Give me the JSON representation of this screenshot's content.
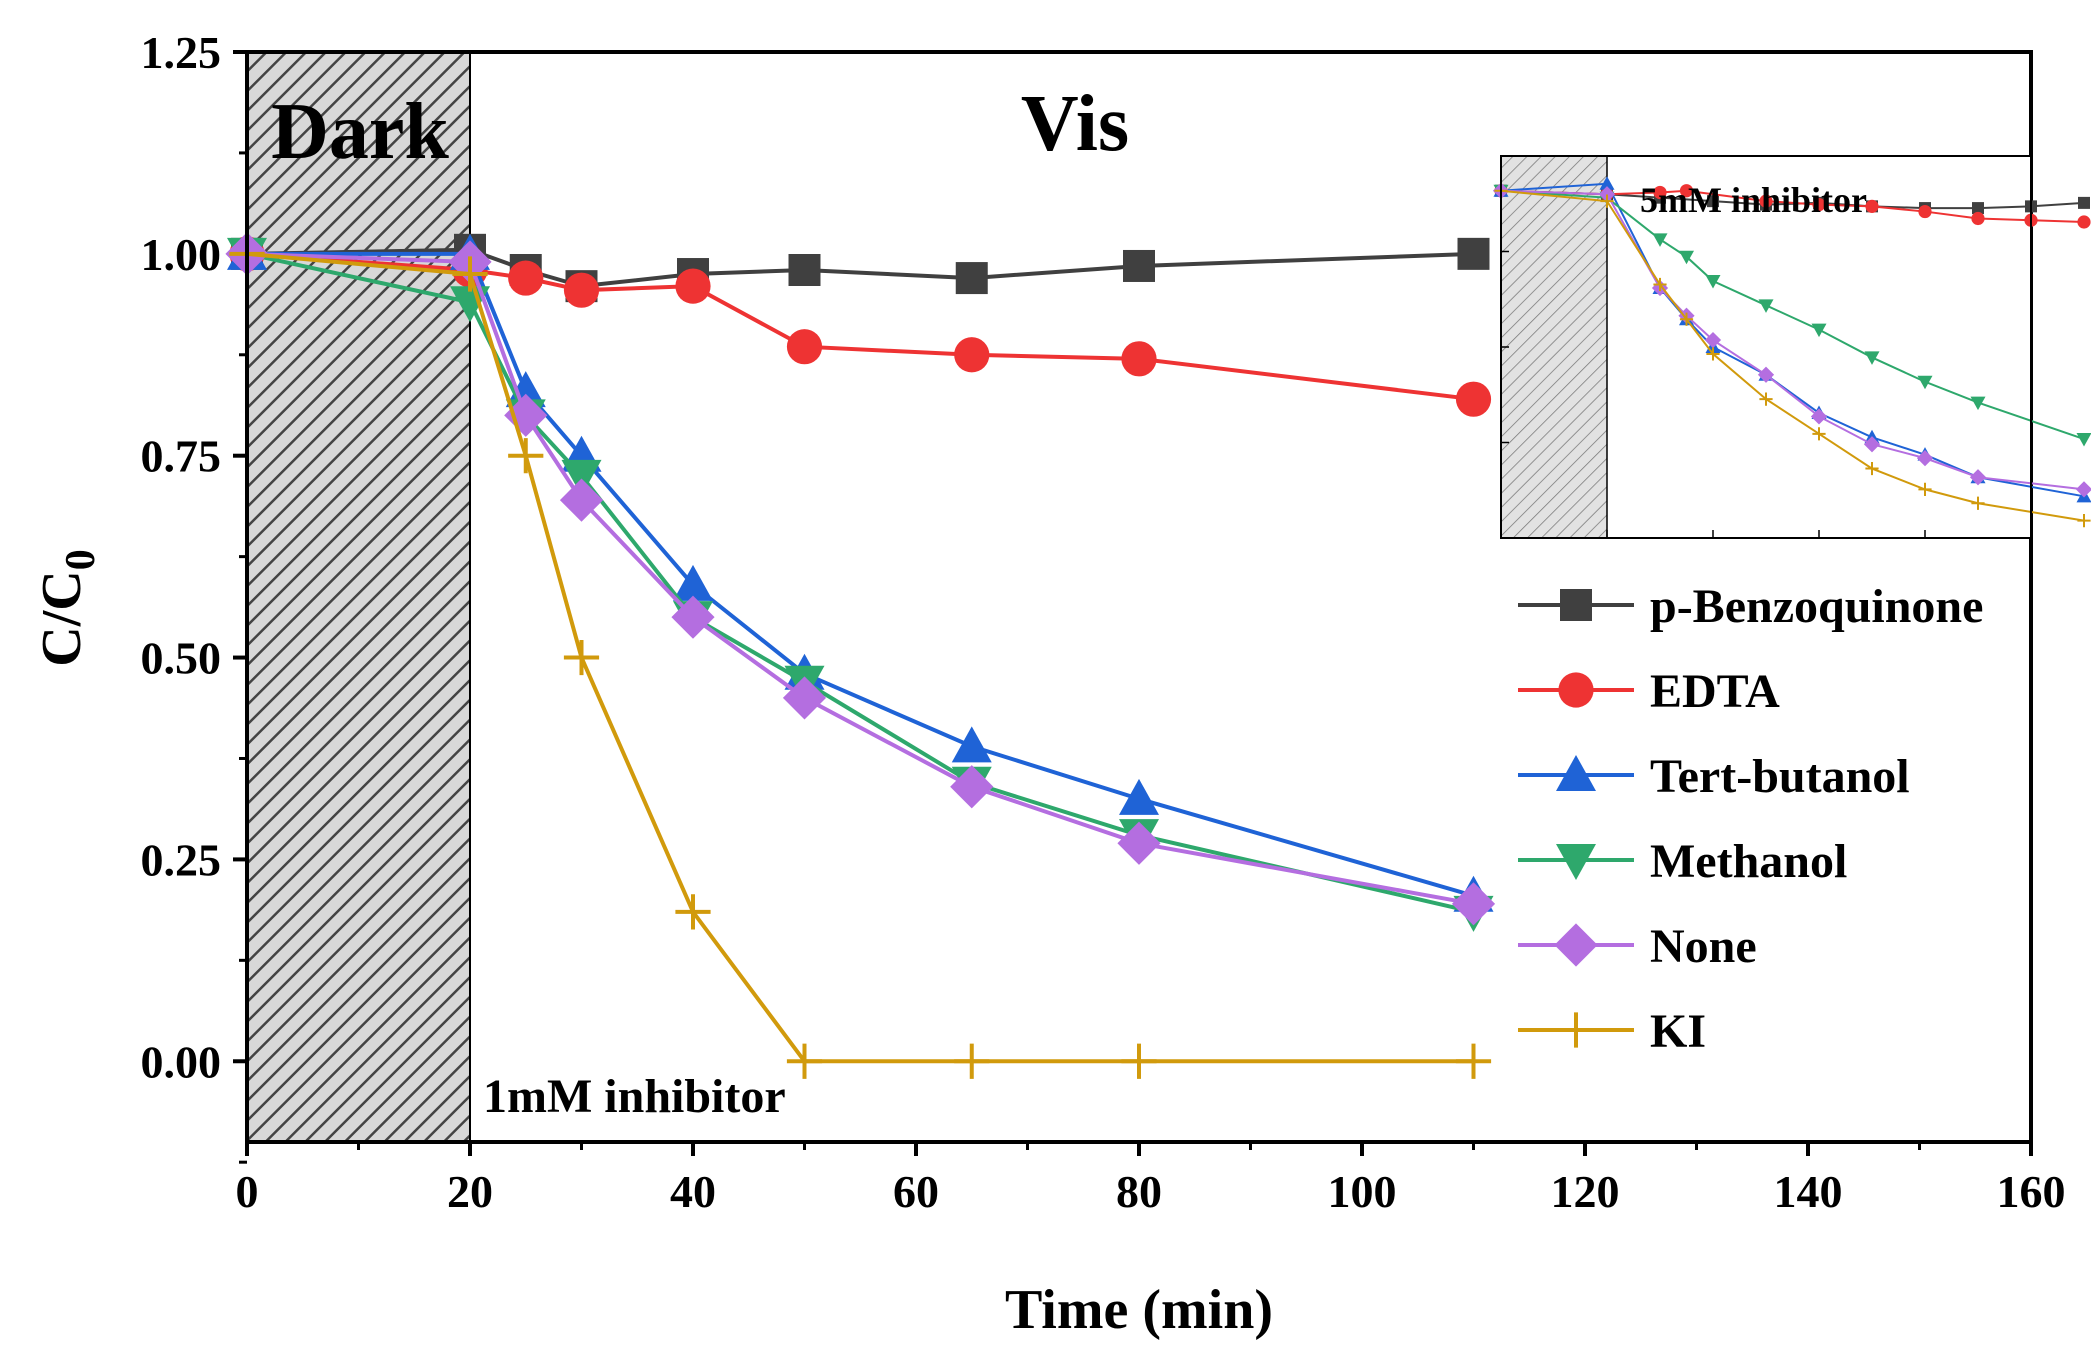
{
  "chart_data": [
    {
      "type": "line",
      "xlabel": "Time (min)",
      "ylabel_main": "C/C",
      "ylabel_sub": "0",
      "xlim": [
        0,
        160
      ],
      "ylim": [
        -0.1,
        1.25
      ],
      "x_ticks": [
        0,
        20,
        40,
        60,
        80,
        100,
        120,
        140,
        160
      ],
      "x_tick_labels": [
        "0",
        "20",
        "40",
        "60",
        "80",
        "100",
        "120",
        "140",
        "160"
      ],
      "y_ticks": [
        0,
        0.25,
        0.5,
        0.75,
        1.0,
        1.25
      ],
      "y_tick_labels": [
        "0.00",
        "0.25",
        "0.50",
        "0.75",
        "1.00",
        "1.25"
      ],
      "region_dark_label": "Dark",
      "region_vis_label": "Vis",
      "dark_range": [
        0,
        20
      ],
      "annotation": "1mM inhibitor",
      "legend_position": "right",
      "series": [
        {
          "name": "p-Benzoquinone",
          "color": "#404040",
          "marker": "square",
          "x": [
            0,
            20,
            25,
            30,
            40,
            50,
            65,
            80,
            110
          ],
          "y": [
            1.0,
            1.005,
            0.98,
            0.96,
            0.975,
            0.98,
            0.97,
            0.985,
            1.0
          ]
        },
        {
          "name": "EDTA",
          "color": "#ee3333",
          "marker": "circle",
          "x": [
            0,
            20,
            25,
            30,
            40,
            50,
            65,
            80,
            110
          ],
          "y": [
            1.0,
            0.98,
            0.97,
            0.955,
            0.96,
            0.885,
            0.875,
            0.87,
            0.82
          ]
        },
        {
          "name": "Tert-butanol",
          "color": "#1f63d6",
          "marker": "triangle-up",
          "x": [
            0,
            20,
            25,
            30,
            40,
            50,
            65,
            80,
            110
          ],
          "y": [
            1.0,
            1.0,
            0.83,
            0.75,
            0.59,
            0.48,
            0.39,
            0.325,
            0.205
          ]
        },
        {
          "name": "Methanol",
          "color": "#2ea86c",
          "marker": "triangle-down",
          "x": [
            0,
            20,
            25,
            30,
            40,
            50,
            65,
            80,
            110
          ],
          "y": [
            1.0,
            0.94,
            0.8,
            0.725,
            0.55,
            0.47,
            0.345,
            0.28,
            0.185
          ]
        },
        {
          "name": "None",
          "color": "#b46ee0",
          "marker": "diamond",
          "x": [
            0,
            20,
            25,
            30,
            40,
            50,
            65,
            80,
            110
          ],
          "y": [
            1.0,
            0.99,
            0.8,
            0.695,
            0.55,
            0.45,
            0.34,
            0.27,
            0.195
          ]
        },
        {
          "name": "KI",
          "color": "#d19a0c",
          "marker": "plus",
          "x": [
            0,
            20,
            25,
            30,
            40,
            50,
            65,
            80,
            110
          ],
          "y": [
            1.0,
            0.975,
            0.75,
            0.5,
            0.185,
            0.0,
            0.0,
            0.0,
            0.0
          ]
        }
      ]
    },
    {
      "type": "line",
      "title": "5mM inhibitor",
      "xlim": [
        0,
        100
      ],
      "ylim": [
        0,
        1.1
      ],
      "dark_range": [
        0,
        20
      ],
      "series": [
        {
          "name": "p-Benzoquinone",
          "color": "#404040",
          "marker": "square",
          "x": [
            0,
            20,
            30,
            40,
            50,
            60,
            70,
            80,
            90,
            100,
            110
          ],
          "y": [
            1.0,
            0.99,
            0.98,
            0.97,
            0.96,
            0.965,
            0.955,
            0.95,
            0.95,
            0.955,
            0.965
          ]
        },
        {
          "name": "EDTA",
          "color": "#ee3333",
          "marker": "circle",
          "x": [
            0,
            20,
            30,
            35,
            50,
            60,
            70,
            80,
            90,
            100,
            110
          ],
          "y": [
            1.0,
            0.99,
            0.995,
            1.0,
            0.97,
            0.96,
            0.955,
            0.94,
            0.92,
            0.915,
            0.91
          ]
        },
        {
          "name": "Tert-butanol",
          "color": "#1f63d6",
          "marker": "triangle-up",
          "x": [
            0,
            20,
            30,
            35,
            40,
            50,
            60,
            70,
            80,
            90,
            110
          ],
          "y": [
            1.0,
            1.02,
            0.72,
            0.63,
            0.55,
            0.47,
            0.36,
            0.29,
            0.24,
            0.175,
            0.12
          ]
        },
        {
          "name": "Methanol",
          "color": "#2ea86c",
          "marker": "triangle-down",
          "x": [
            0,
            20,
            30,
            35,
            40,
            50,
            60,
            70,
            80,
            90,
            110
          ],
          "y": [
            1.0,
            0.98,
            0.86,
            0.81,
            0.74,
            0.67,
            0.6,
            0.52,
            0.45,
            0.39,
            0.285
          ]
        },
        {
          "name": "None",
          "color": "#b46ee0",
          "marker": "diamond",
          "x": [
            0,
            20,
            30,
            35,
            40,
            50,
            60,
            70,
            80,
            90,
            110
          ],
          "y": [
            1.0,
            0.99,
            0.72,
            0.64,
            0.57,
            0.47,
            0.35,
            0.27,
            0.23,
            0.175,
            0.14
          ]
        },
        {
          "name": "KI",
          "color": "#d19a0c",
          "marker": "plus",
          "x": [
            0,
            20,
            30,
            35,
            40,
            50,
            60,
            70,
            80,
            90,
            110
          ],
          "y": [
            1.0,
            0.97,
            0.73,
            0.63,
            0.53,
            0.4,
            0.3,
            0.2,
            0.14,
            0.1,
            0.05
          ]
        }
      ]
    }
  ]
}
